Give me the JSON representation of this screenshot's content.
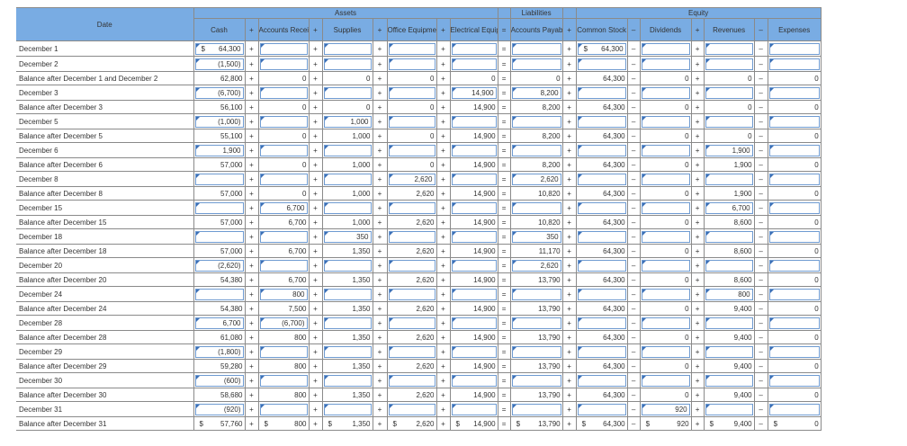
{
  "headers": {
    "date": "Date",
    "assets": "Assets",
    "liabilities": "Liabilities",
    "equity": "Equity",
    "columns": [
      "Cash",
      "Accounts Receivable",
      "Supplies",
      "Office Equipment",
      "Electrical Equipment",
      "Accounts Payable",
      "Common Stock",
      "Dividends",
      "Revenues",
      "Expenses"
    ],
    "operators": [
      "+",
      "+",
      "+",
      "+",
      "=",
      "+",
      "–",
      "+",
      "–"
    ]
  },
  "rows": [
    {
      "label": "December 1",
      "type": "input",
      "values": [
        "$ 64,300",
        "",
        "",
        "",
        "",
        "",
        "$ 64,300",
        "",
        "",
        ""
      ]
    },
    {
      "label": "December 2",
      "type": "input",
      "values": [
        "(1,500)",
        "",
        "",
        "",
        "",
        "",
        "",
        "",
        "",
        ""
      ]
    },
    {
      "label": "Balance after December 1 and December 2",
      "type": "balance",
      "values": [
        "62,800",
        "0",
        "0",
        "0",
        "0",
        "0",
        "64,300",
        "0",
        "0",
        "0"
      ]
    },
    {
      "label": "December 3",
      "type": "input",
      "values": [
        "(6,700)",
        "",
        "",
        "",
        "14,900",
        "8,200",
        "",
        "",
        "",
        ""
      ]
    },
    {
      "label": "Balance after December 3",
      "type": "balance",
      "values": [
        "56,100",
        "0",
        "0",
        "0",
        "14,900",
        "8,200",
        "64,300",
        "0",
        "0",
        "0"
      ]
    },
    {
      "label": "December 5",
      "type": "input",
      "values": [
        "(1,000)",
        "",
        "1,000",
        "",
        "",
        "",
        "",
        "",
        "",
        ""
      ]
    },
    {
      "label": "Balance after December 5",
      "type": "balance",
      "values": [
        "55,100",
        "0",
        "1,000",
        "0",
        "14,900",
        "8,200",
        "64,300",
        "0",
        "0",
        "0"
      ]
    },
    {
      "label": "December 6",
      "type": "input",
      "values": [
        "1,900",
        "",
        "",
        "",
        "",
        "",
        "",
        "",
        "1,900",
        ""
      ]
    },
    {
      "label": "Balance after December 6",
      "type": "balance",
      "values": [
        "57,000",
        "0",
        "1,000",
        "0",
        "14,900",
        "8,200",
        "64,300",
        "0",
        "1,900",
        "0"
      ]
    },
    {
      "label": "December 8",
      "type": "input",
      "values": [
        "",
        "",
        "",
        "2,620",
        "",
        "2,620",
        "",
        "",
        "",
        ""
      ]
    },
    {
      "label": "Balance after December 8",
      "type": "balance",
      "values": [
        "57,000",
        "0",
        "1,000",
        "2,620",
        "14,900",
        "10,820",
        "64,300",
        "0",
        "1,900",
        "0"
      ]
    },
    {
      "label": "December 15",
      "type": "input",
      "values": [
        "",
        "6,700",
        "",
        "",
        "",
        "",
        "",
        "",
        "6,700",
        ""
      ]
    },
    {
      "label": "Balance after December 15",
      "type": "balance",
      "values": [
        "57,000",
        "6,700",
        "1,000",
        "2,620",
        "14,900",
        "10,820",
        "64,300",
        "0",
        "8,600",
        "0"
      ]
    },
    {
      "label": "December 18",
      "type": "input",
      "values": [
        "",
        "",
        "350",
        "",
        "",
        "350",
        "",
        "",
        "",
        ""
      ]
    },
    {
      "label": "Balance after December 18",
      "type": "balance",
      "values": [
        "57,000",
        "6,700",
        "1,350",
        "2,620",
        "14,900",
        "11,170",
        "64,300",
        "0",
        "8,600",
        "0"
      ]
    },
    {
      "label": "December 20",
      "type": "input",
      "values": [
        "(2,620)",
        "",
        "",
        "",
        "",
        "2,620",
        "",
        "",
        "",
        ""
      ]
    },
    {
      "label": "Balance after December 20",
      "type": "balance",
      "values": [
        "54,380",
        "6,700",
        "1,350",
        "2,620",
        "14,900",
        "13,790",
        "64,300",
        "0",
        "8,600",
        "0"
      ]
    },
    {
      "label": "December 24",
      "type": "input",
      "values": [
        "",
        "800",
        "",
        "",
        "",
        "",
        "",
        "",
        "800",
        ""
      ]
    },
    {
      "label": "Balance after December 24",
      "type": "balance",
      "values": [
        "54,380",
        "7,500",
        "1,350",
        "2,620",
        "14,900",
        "13,790",
        "64,300",
        "0",
        "9,400",
        "0"
      ]
    },
    {
      "label": "December 28",
      "type": "input",
      "values": [
        "6,700",
        "(6,700)",
        "",
        "",
        "",
        "",
        "",
        "",
        "",
        ""
      ]
    },
    {
      "label": "Balance after December 28",
      "type": "balance",
      "values": [
        "61,080",
        "800",
        "1,350",
        "2,620",
        "14,900",
        "13,790",
        "64,300",
        "0",
        "9,400",
        "0"
      ]
    },
    {
      "label": "December 29",
      "type": "input",
      "values": [
        "(1,800)",
        "",
        "",
        "",
        "",
        "",
        "",
        "",
        "",
        ""
      ]
    },
    {
      "label": "Balance after December 29",
      "type": "balance",
      "values": [
        "59,280",
        "800",
        "1,350",
        "2,620",
        "14,900",
        "13,790",
        "64,300",
        "0",
        "9,400",
        "0"
      ]
    },
    {
      "label": "December 30",
      "type": "input",
      "values": [
        "(600)",
        "",
        "",
        "",
        "",
        "",
        "",
        "",
        "",
        ""
      ]
    },
    {
      "label": "Balance after December 30",
      "type": "balance",
      "values": [
        "58,680",
        "800",
        "1,350",
        "2,620",
        "14,900",
        "13,790",
        "64,300",
        "0",
        "9,400",
        "0"
      ]
    },
    {
      "label": "December 31",
      "type": "input",
      "values": [
        "(920)",
        "",
        "",
        "",
        "",
        "",
        "",
        "920",
        "",
        ""
      ]
    },
    {
      "label": "Balance after December 31",
      "type": "balance",
      "values": [
        "$ 57,760",
        "$ 800",
        "$ 1,350",
        "$ 2,620",
        "$ 14,900",
        "$ 13,790",
        "$ 64,300",
        "$ 920",
        "$ 9,400",
        "$ 0"
      ]
    }
  ]
}
